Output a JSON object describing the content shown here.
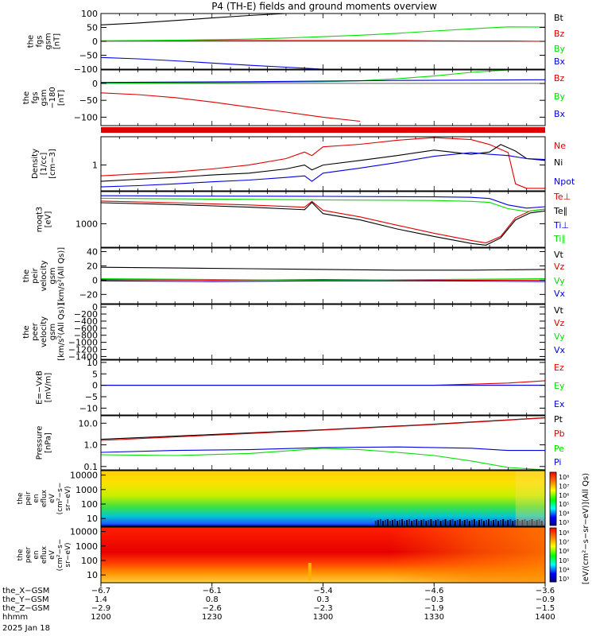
{
  "title": "P4 (TH-E) fields and ground moments overview",
  "colors": {
    "black": "#000000",
    "red": "#e00000",
    "green": "#00e000",
    "blue": "#0000e0"
  },
  "chart_data": [
    {
      "id": "fgs_gsm",
      "type": "line",
      "ylabel_lines": [
        "the",
        "fgs",
        "gsm",
        "[nT]"
      ],
      "ylim": [
        -100,
        100
      ],
      "y_ticks": [
        100,
        50,
        0,
        -50,
        -100
      ],
      "y_tick_labels": [
        "100",
        "50",
        "0",
        "−50",
        "−100"
      ],
      "series": [
        {
          "name": "Bt",
          "color": "black",
          "x": [
            0,
            10,
            20,
            30,
            40,
            50
          ],
          "y": [
            59,
            66,
            75,
            84,
            93,
            101
          ],
          "clip": true
        },
        {
          "name": "Bz",
          "color": "red",
          "x": [
            0,
            10,
            20,
            30,
            40,
            50,
            60,
            70,
            80,
            90,
            100,
            110,
            120
          ],
          "y": [
            1,
            2,
            2,
            3,
            3,
            3,
            3,
            3,
            3,
            2,
            1,
            1,
            0
          ]
        },
        {
          "name": "By",
          "color": "green",
          "x": [
            0,
            10,
            20,
            30,
            40,
            50,
            60,
            70,
            80,
            90,
            100,
            110,
            120
          ],
          "y": [
            2,
            3,
            4,
            6,
            8,
            12,
            17,
            22,
            29,
            37,
            45,
            52,
            51
          ]
        },
        {
          "name": "Bx",
          "color": "blue",
          "x": [
            0,
            10,
            20,
            30,
            40,
            50,
            60,
            70
          ],
          "y": [
            -58,
            -63,
            -70,
            -78,
            -86,
            -93,
            -100,
            -100
          ],
          "clip": true
        }
      ]
    },
    {
      "id": "fgs_gsm_m180",
      "type": "line",
      "ylabel_lines": [
        "the",
        "fgs",
        "gsm",
        "−180",
        "[nT]"
      ],
      "ylim": [
        -125,
        40
      ],
      "y_ticks": [
        0,
        -50,
        -100
      ],
      "y_tick_labels": [
        "0",
        "−50",
        "−100"
      ],
      "series": [
        {
          "name": "Bz",
          "color": "red",
          "x": [
            0,
            10,
            20,
            30,
            40,
            50,
            60,
            70
          ],
          "y": [
            -28,
            -33,
            -42,
            -55,
            -70,
            -85,
            -100,
            -112
          ],
          "clip": true
        },
        {
          "name": "By",
          "color": "green",
          "x": [
            0,
            20,
            40,
            60,
            70,
            80,
            90,
            100,
            110,
            120
          ],
          "y": [
            1,
            2,
            3,
            5,
            8,
            14,
            22,
            33,
            45,
            60
          ]
        },
        {
          "name": "Bx",
          "color": "blue",
          "x": [
            0,
            40,
            80,
            120
          ],
          "y": [
            3,
            5,
            9,
            11
          ]
        }
      ]
    },
    {
      "id": "density",
      "type": "line",
      "scale": "log",
      "ylabel_lines": [
        "Density",
        "[1/cc]",
        "[cm−3]"
      ],
      "ylim": [
        0.15,
        8
      ],
      "y_ticks": [
        1
      ],
      "y_tick_labels": [
        "1"
      ],
      "series": [
        {
          "name": "Ne",
          "color": "red",
          "x": [
            0,
            10,
            20,
            30,
            40,
            50,
            55,
            57,
            60,
            70,
            80,
            90,
            100,
            105,
            110,
            112,
            115,
            120
          ],
          "y": [
            0.45,
            0.52,
            0.6,
            0.75,
            1.0,
            1.6,
            2.6,
            2.0,
            3.8,
            4.6,
            6.2,
            7.5,
            6.5,
            4.5,
            2.5,
            0.25,
            0.18,
            0.18
          ]
        },
        {
          "name": "Ni",
          "color": "black",
          "x": [
            0,
            10,
            20,
            30,
            40,
            50,
            55,
            57,
            60,
            70,
            80,
            90,
            100,
            105,
            108,
            112,
            115,
            120
          ],
          "y": [
            0.3,
            0.35,
            0.4,
            0.48,
            0.55,
            0.75,
            1.0,
            0.7,
            1.0,
            1.4,
            2.0,
            3.0,
            2.2,
            2.6,
            4.5,
            2.8,
            1.6,
            1.4
          ]
        },
        {
          "name": "Npot",
          "color": "blue",
          "x": [
            0,
            10,
            20,
            30,
            40,
            50,
            55,
            57,
            60,
            70,
            80,
            90,
            100,
            105,
            110,
            115,
            120
          ],
          "y": [
            0.2,
            0.22,
            0.25,
            0.29,
            0.33,
            0.4,
            0.45,
            0.3,
            0.55,
            0.8,
            1.2,
            1.9,
            2.5,
            2.2,
            2.0,
            1.6,
            1.5
          ]
        }
      ]
    },
    {
      "id": "moments_temp",
      "type": "line",
      "scale": "log",
      "ylabel_lines": [
        "moqt3",
        "[eV]"
      ],
      "ylim": [
        200,
        9000
      ],
      "y_ticks": [
        1000
      ],
      "y_tick_labels": [
        "1000"
      ],
      "series": [
        {
          "name": "Te⊥",
          "color": "red",
          "x": [
            0,
            20,
            40,
            55,
            57,
            60,
            70,
            80,
            90,
            100,
            104,
            108,
            112,
            116,
            120
          ],
          "y": [
            4700,
            4200,
            3600,
            3100,
            4600,
            2500,
            1600,
            900,
            520,
            320,
            270,
            420,
            1500,
            2400,
            2700
          ]
        },
        {
          "name": "Te∥",
          "color": "black",
          "x": [
            0,
            20,
            40,
            55,
            57,
            60,
            70,
            80,
            90,
            100,
            104,
            108,
            112,
            116,
            120
          ],
          "y": [
            4200,
            3700,
            3100,
            2600,
            4300,
            2000,
            1300,
            700,
            420,
            260,
            230,
            380,
            1300,
            2100,
            2400
          ]
        },
        {
          "name": "Ti⊥",
          "color": "blue",
          "x": [
            0,
            30,
            60,
            90,
            100,
            105,
            110,
            115,
            120
          ],
          "y": [
            6800,
            6600,
            6500,
            6300,
            6100,
            5600,
            3600,
            2900,
            3200
          ]
        },
        {
          "name": "Ti∥",
          "color": "green",
          "x": [
            0,
            30,
            60,
            90,
            100,
            105,
            110,
            115,
            120
          ],
          "y": [
            5700,
            5400,
            5100,
            4900,
            4600,
            4300,
            2800,
            2300,
            2700
          ]
        }
      ]
    },
    {
      "id": "peir_velocity",
      "type": "line",
      "ylabel_lines": [
        "the",
        "peir",
        "velocity",
        "gsm",
        "[km/s²(All Qs)]"
      ],
      "ylim": [
        -33,
        45
      ],
      "y_ticks": [
        40,
        20,
        0,
        -20
      ],
      "y_tick_labels": [
        "40",
        "20",
        "0",
        "−20"
      ],
      "series": [
        {
          "name": "Vt",
          "color": "black",
          "x": [
            0,
            20,
            40,
            60,
            80,
            100,
            120
          ],
          "y": [
            18,
            17,
            16,
            15,
            14,
            14,
            15
          ]
        },
        {
          "name": "Vz",
          "color": "red",
          "x": [
            0,
            30,
            60,
            90,
            120
          ],
          "y": [
            1,
            0,
            1,
            0,
            0
          ]
        },
        {
          "name": "Vy",
          "color": "green",
          "x": [
            0,
            30,
            60,
            90,
            120
          ],
          "y": [
            2,
            1,
            0,
            1,
            2
          ]
        },
        {
          "name": "Vx",
          "color": "blue",
          "x": [
            0,
            30,
            60,
            90,
            120
          ],
          "y": [
            -1,
            -2,
            -1,
            -1,
            -2
          ]
        }
      ]
    },
    {
      "id": "peer_velocity",
      "type": "line",
      "ylabel_lines": [
        "the",
        "peer",
        "velocity",
        "gsm",
        "[km/s²(All Qs)]"
      ],
      "ylim": [
        -1480,
        70
      ],
      "y_ticks": [
        0,
        -200,
        -400,
        -600,
        -800,
        -1000,
        -1200,
        -1400
      ],
      "y_tick_labels": [
        "0",
        "−200",
        "−400",
        "−600",
        "−800",
        "−1000",
        "−1200",
        "−1400"
      ],
      "series": [
        {
          "name": "Vt",
          "color": "black",
          "x": [],
          "y": []
        },
        {
          "name": "Vz",
          "color": "red",
          "x": [],
          "y": []
        },
        {
          "name": "Vy",
          "color": "green",
          "x": [],
          "y": []
        },
        {
          "name": "Vx",
          "color": "blue",
          "x": [],
          "y": []
        }
      ]
    },
    {
      "id": "efield",
      "type": "line",
      "ylabel_lines": [
        "E=−VxB",
        "[mV/m]"
      ],
      "ylim": [
        -13,
        11
      ],
      "y_ticks": [
        10,
        5,
        0,
        -5,
        -10
      ],
      "y_tick_labels": [
        "10",
        "5",
        "0",
        "−5",
        "−10"
      ],
      "series": [
        {
          "name": "Ez",
          "color": "red",
          "x": [
            0,
            30,
            60,
            90,
            110,
            120
          ],
          "y": [
            0,
            0,
            0,
            0,
            1,
            2
          ]
        },
        {
          "name": "Ey",
          "color": "green",
          "x": [
            0,
            30,
            60,
            90,
            110,
            120
          ],
          "y": [
            0,
            0,
            0,
            0,
            0,
            0
          ]
        },
        {
          "name": "Ex",
          "color": "blue",
          "x": [
            0,
            60,
            120
          ],
          "y": [
            0,
            0,
            0
          ]
        }
      ]
    },
    {
      "id": "pressure",
      "type": "line",
      "scale": "log",
      "ylabel_lines": [
        "Pressure",
        "[nPa]"
      ],
      "ylim": [
        0.07,
        22
      ],
      "y_ticks": [
        10,
        1,
        0.1
      ],
      "y_tick_labels": [
        "10.0",
        "1.0",
        "0.1"
      ],
      "series": [
        {
          "name": "Pt",
          "color": "black",
          "x": [
            0,
            30,
            60,
            90,
            120
          ],
          "y": [
            1.8,
            3.0,
            5.0,
            9.0,
            18.0
          ]
        },
        {
          "name": "Pb",
          "color": "red",
          "x": [
            0,
            30,
            60,
            90,
            120
          ],
          "y": [
            1.6,
            2.8,
            4.8,
            8.7,
            17.5
          ]
        },
        {
          "name": "Pe",
          "color": "green",
          "x": [
            0,
            20,
            40,
            55,
            60,
            70,
            80,
            90,
            100,
            110,
            120
          ],
          "y": [
            0.35,
            0.32,
            0.4,
            0.6,
            0.7,
            0.6,
            0.45,
            0.32,
            0.18,
            0.09,
            0.07
          ]
        },
        {
          "name": "Pi",
          "color": "blue",
          "x": [
            0,
            20,
            40,
            60,
            80,
            100,
            110,
            120
          ],
          "y": [
            0.45,
            0.55,
            0.6,
            0.75,
            0.8,
            0.7,
            0.55,
            0.55
          ]
        }
      ]
    }
  ],
  "spectrograms": [
    {
      "id": "peir_eflux",
      "ylabel_lines": [
        "the",
        "peir",
        "en",
        "eflux",
        "eV",
        "(cm²−s−",
        "sr−eV)"
      ],
      "y_tick_labels": [
        "10000",
        "1000",
        "100",
        "10"
      ]
    },
    {
      "id": "peer_eflux",
      "ylabel_lines": [
        "the",
        "peer",
        "en",
        "eflux",
        "eV",
        "(cm²−s−",
        "sr−eV)"
      ],
      "y_tick_labels": [
        "10000",
        "1000",
        "100",
        "10"
      ]
    }
  ],
  "colorbar": {
    "tick_labels": [
      "10⁸",
      "10⁷",
      "10⁶",
      "10⁵",
      "10⁴",
      "10³"
    ],
    "tick_labels_2": [
      "10⁸",
      "10⁷",
      "10⁶",
      "10⁵",
      "10⁴",
      "10³"
    ],
    "label": "[eV/(cm²−s−sr−eV)](All Qs)"
  },
  "x_axis": {
    "rows": [
      {
        "label": "the_X−GSM",
        "values": [
          "−6.7",
          "−6.1",
          "−5.4",
          "−4.6",
          "−3.6"
        ]
      },
      {
        "label": "the_Y−GSM",
        "values": [
          "1.4",
          "0.8",
          "0.3",
          "−0.3",
          "−0.9"
        ]
      },
      {
        "label": "the_Z−GSM",
        "values": [
          "−2.9",
          "−2.6",
          "−2.3",
          "−1.9",
          "−1.5"
        ]
      },
      {
        "label": "hhmm",
        "values": [
          "1200",
          "1230",
          "1300",
          "1330",
          "1400"
        ]
      }
    ],
    "date": "2025 Jan 18"
  }
}
